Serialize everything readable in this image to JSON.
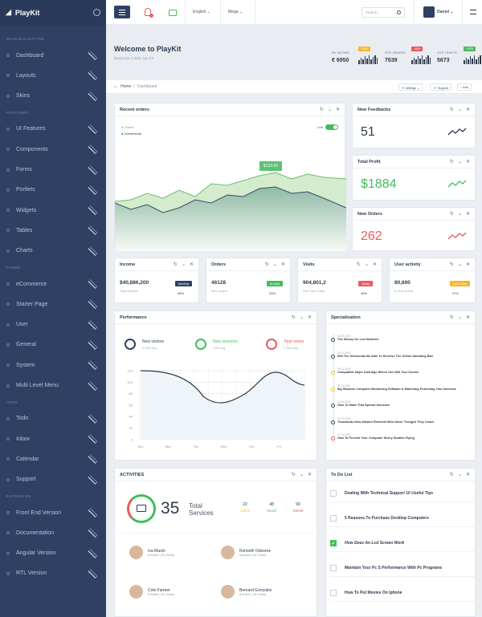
{
  "brand": "PlayKit",
  "sidebar": {
    "sections": [
      {
        "title": "MAIN NAVIGATION",
        "items": [
          "Dashboard",
          "Layouts",
          "Skins"
        ]
      },
      {
        "title": "FEATURES",
        "items": [
          "UI Features",
          "Components",
          "Forms",
          "Portlets",
          "Widgets",
          "Tables",
          "Charts"
        ]
      },
      {
        "title": "PAGES",
        "items": [
          "eCommerce",
          "Starter Page",
          "User",
          "General",
          "System",
          "Multi Level Menu"
        ]
      },
      {
        "title": "APPS",
        "items": [
          "Todo",
          "Inbox",
          "Calendar",
          "Support"
        ]
      },
      {
        "title": "EXTENSION",
        "items": [
          "Front End Version",
          "Documentation",
          "Angular Version",
          "RTL Version"
        ]
      }
    ]
  },
  "topbar": {
    "lang": "English",
    "mega": "Mega",
    "search_placeholder": "Search...",
    "user": "Daniel",
    "notif_count": "3"
  },
  "welcome": {
    "title": "Welcome to PlayKit",
    "subtitle": "Bootstrap 4 Web App Kit",
    "stats": [
      {
        "label": "MY INCOME",
        "value": "€ 6950",
        "badge": "+10%",
        "color": "#f5b82e"
      },
      {
        "label": "SITE ORDERS",
        "value": "7639",
        "badge": "-40%",
        "color": "#e55a5a"
      },
      {
        "label": "SITE TRAFFIC",
        "value": "5673",
        "badge": "+10%",
        "color": "#4dba5b"
      }
    ]
  },
  "breadcrumb": {
    "home": "Home",
    "current": "Dashboard",
    "settings": "Settings",
    "support": "Support",
    "add": "Add"
  },
  "recent_orders": {
    "title": "Recent orders",
    "legend1": "Orders",
    "legend2": "Investments",
    "live": "Live",
    "tooltip": "$133.50"
  },
  "feedbacks": {
    "title": "New Feedbacks",
    "value": "51",
    "color": "#2d3a4e"
  },
  "profit": {
    "title": "Total Profit",
    "value": "$1884",
    "color": "#3fbf5a"
  },
  "new_orders": {
    "title": "New Orders",
    "value": "262",
    "color": "#e85c5c"
  },
  "stat_cards": [
    {
      "title": "Income",
      "value": "$40,886,200",
      "sub": "Total Income",
      "badge": "Monthly",
      "color": "#2f4063",
      "pct": "98%"
    },
    {
      "title": "Orders",
      "value": "46128",
      "sub": "New orders",
      "badge": "Annual",
      "color": "#3fbf5a",
      "pct": "20%"
    },
    {
      "title": "Visits",
      "value": "904,801,2",
      "sub": "Site Visit Today",
      "badge": "Today",
      "color": "#e85c5c",
      "pct": "46%"
    },
    {
      "title": "User activity",
      "value": "80,600",
      "sub": "In first month",
      "badge": "Low value",
      "color": "#f5b82e",
      "pct": "37%"
    }
  ],
  "performance": {
    "title": "Performance",
    "kpis": [
      {
        "label": "New visitors",
        "sub": "2,345 avg",
        "color": "#2f4063"
      },
      {
        "label": "New sessions",
        "sub": "1,00 avg",
        "color": "#3fbf5a"
      },
      {
        "label": "Total online",
        "sub": "2,345 avg",
        "color": "#e85c5c"
      }
    ],
    "yticks": [
      "120",
      "100",
      "80",
      "60",
      "40",
      "20",
      "0"
    ],
    "xticks": [
      "Sun",
      "Mon",
      "Tue",
      "Wed",
      "Thu",
      "Fri"
    ]
  },
  "specialization": {
    "title": "Specialization",
    "items": [
      {
        "date": "02.07.2019",
        "text": "The Skinny On Lcd Monitors",
        "color": "#2f4063"
      },
      {
        "date": "04.12.2019",
        "text": "Will The Democrats Be Able To Reverse The Online Gambling Ban",
        "color": "#2f4063"
      },
      {
        "date": "05.11.2019",
        "text": "Compatible Inkjet Cartridge Which One Will You Choose",
        "color": "#f5b82e"
      },
      {
        "date": "09.11.2019",
        "text": "Ibg Stardom Computer Monitoring Software A Watchdog Protecting Your Interests",
        "color": "#f5b82e"
      },
      {
        "date": "11.09.2019",
        "text": "How To Make That Special Someone",
        "color": "#2f4063"
      },
      {
        "date": "02.07.2019",
        "text": "Thousands Now Adware Removal Who Never Thought They Could",
        "color": "#2f4063"
      },
      {
        "date": "07.12.2019",
        "text": "How To Prevent Your Computer Worry Subtitle Flying",
        "color": "#e85c5c"
      }
    ]
  },
  "activities": {
    "title": "ACTIVITIES",
    "count": "35",
    "label": "Total Services",
    "stats": [
      {
        "n": "22",
        "l": "Active",
        "c": "#f5b82e"
      },
      {
        "n": "48",
        "l": "Stood",
        "c": "#3fbf5a"
      },
      {
        "n": "90",
        "l": "Delete",
        "c": "#e85c5c"
      }
    ],
    "people": [
      {
        "name": "Iva Marsh",
        "status": "Active (-20 Years)"
      },
      {
        "name": "Kenneth Osborne",
        "status": "Active (-30 Years)"
      },
      {
        "name": "Cole Farmer",
        "status": "Active (-30 Years)"
      },
      {
        "name": "Bernard Gonzalez",
        "status": "Active (-15 Years)"
      }
    ]
  },
  "todo": {
    "title": "To Do List",
    "items": [
      "Dealing With Technical Support 10 Useful Tips",
      "5 Reasons To Purchase Desktop Computers",
      "How Does An Lcd Screen Work",
      "Maintain Your Pc S Performance With Pc Programs",
      "How To Put Movies On Iphone"
    ]
  }
}
